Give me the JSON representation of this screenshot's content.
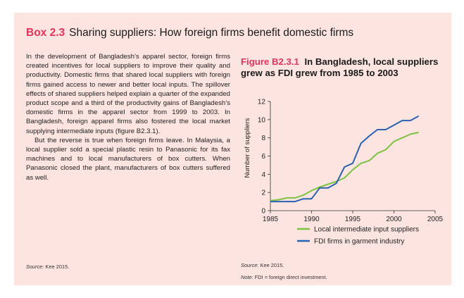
{
  "box": {
    "number": "Box 2.3",
    "title": "Sharing suppliers: How foreign firms benefit domestic firms",
    "paragraphs": [
      "In the development of Bangladesh’s apparel sector, foreign firms created incentives for local suppliers to improve their quality and productivity. Domestic firms that shared local suppliers with foreign firms gained access to newer and better local inputs. The spillover effects of shared suppliers helped explain a quarter of the expanded product scope and a third of the productivity gains of Bangladesh’s domestic firms in the apparel sector from 1999 to 2003. In Bangladesh, foreign apparel firms also fostered the local market supplying intermediate inputs (figure B2.3.1).",
      "But the reverse is true when foreign firms leave. In Malaysia, a local supplier sold a special plastic resin to Panasonic for its fax machines and to local manufacturers of box cutters. When Panasonic closed the plant, manufacturers of box cutters suffered as well."
    ],
    "source_label": "Source:",
    "source_text": "Kee 2015."
  },
  "figure": {
    "number": "Figure B2.3.1",
    "title": "In Bangladesh, local suppliers grew as FDI grew from 1985 to 2003",
    "source_label": "Source:",
    "source_text": "Kee 2015.",
    "note_label": "Note:",
    "note_text": "FDI = foreign direct investment."
  },
  "colors": {
    "accent": "#e4325a",
    "background": "#fce4e1",
    "local_series": "#7dc242",
    "fdi_series": "#2a62b0"
  },
  "chart_data": {
    "type": "line",
    "ylabel": "Number of suppliers",
    "xlabel": "",
    "xlim": [
      1985,
      2005
    ],
    "ylim": [
      0,
      12
    ],
    "x_ticks": [
      1985,
      1990,
      1995,
      2000,
      2005
    ],
    "y_ticks": [
      0,
      2,
      4,
      6,
      8,
      10,
      12
    ],
    "grid": false,
    "legend_position": "bottom",
    "series": [
      {
        "name": "Local intermediate input suppliers",
        "color": "#7dc242",
        "x": [
          1985,
          1986,
          1987,
          1988,
          1989,
          1990,
          1991,
          1992,
          1993,
          1994,
          1995,
          1996,
          1997,
          1998,
          1999,
          2000,
          2001,
          2002,
          2003
        ],
        "y": [
          1.1,
          1.2,
          1.4,
          1.4,
          1.7,
          2.2,
          2.6,
          2.9,
          3.2,
          3.6,
          4.5,
          5.2,
          5.5,
          6.3,
          6.7,
          7.6,
          8.0,
          8.4,
          8.6
        ]
      },
      {
        "name": "FDI firms in garment industry",
        "color": "#2a62b0",
        "x": [
          1985,
          1986,
          1987,
          1988,
          1989,
          1990,
          1991,
          1992,
          1993,
          1994,
          1995,
          1996,
          1997,
          1998,
          1999,
          2000,
          2001,
          2002,
          2003
        ],
        "y": [
          1.0,
          1.0,
          1.0,
          1.0,
          1.3,
          1.3,
          2.5,
          2.5,
          3.0,
          4.8,
          5.2,
          7.4,
          8.2,
          8.9,
          8.9,
          9.4,
          9.9,
          9.9,
          10.4
        ]
      }
    ]
  }
}
